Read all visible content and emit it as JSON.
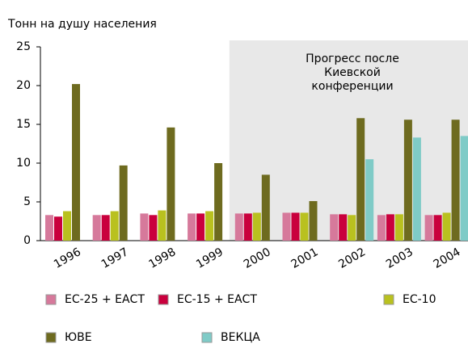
{
  "chart_data": {
    "type": "bar",
    "ylabel": "Тонн на душу населения",
    "categories": [
      "1996",
      "1997",
      "1998",
      "1999",
      "2000",
      "2001",
      "2002",
      "2003",
      "2004"
    ],
    "series": [
      {
        "name": "ЕС-25 + ЕАСТ",
        "color": "#d6799b",
        "values": [
          3.3,
          3.3,
          3.5,
          3.5,
          3.5,
          3.6,
          3.4,
          3.3,
          3.3
        ]
      },
      {
        "name": "ЕС-15 + ЕАСТ",
        "color": "#c9003d",
        "values": [
          3.1,
          3.3,
          3.3,
          3.5,
          3.5,
          3.6,
          3.4,
          3.4,
          3.3
        ]
      },
      {
        "name": "ЕС-10",
        "color": "#b9c11f",
        "values": [
          3.8,
          3.8,
          3.9,
          3.8,
          3.6,
          3.6,
          3.3,
          3.4,
          3.6
        ]
      },
      {
        "name": "ЮВЕ",
        "color": "#6e6b1f",
        "values": [
          20.2,
          9.7,
          14.6,
          10.0,
          8.5,
          5.1,
          15.8,
          15.6,
          15.6
        ]
      },
      {
        "name": "ВЕКЦА",
        "color": "#7fcbc7",
        "values": [
          null,
          null,
          null,
          null,
          null,
          null,
          10.5,
          13.3,
          13.5
        ]
      }
    ],
    "ylim": [
      0,
      25
    ],
    "yticks": [
      0,
      5,
      10,
      15,
      20,
      25
    ],
    "highlight": {
      "from": "2000",
      "annotation": [
        "Прогресс после",
        "Киевской",
        "конференции"
      ]
    }
  }
}
